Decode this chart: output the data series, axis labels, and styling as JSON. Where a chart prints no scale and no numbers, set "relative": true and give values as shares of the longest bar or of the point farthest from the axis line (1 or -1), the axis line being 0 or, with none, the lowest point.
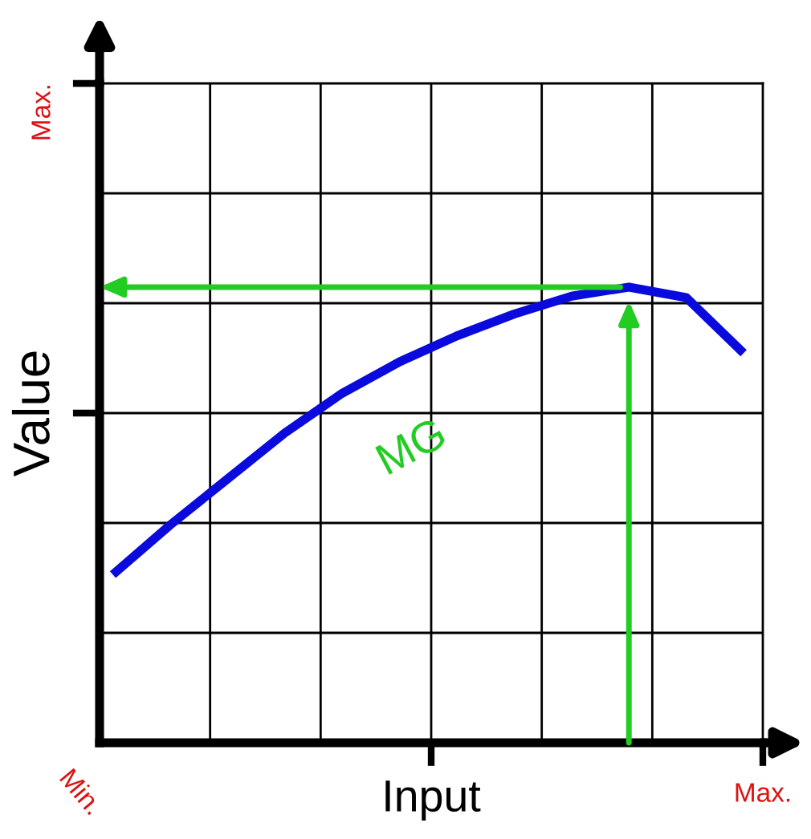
{
  "chart_data": {
    "type": "line",
    "xlabel": "Input",
    "ylabel": "Value",
    "relative": true,
    "grid": true,
    "categories": [
      null,
      null,
      null,
      null,
      null,
      null,
      null,
      null,
      null,
      null,
      null,
      null
    ],
    "series": [
      {
        "color": "#0a0adc",
        "values": [
          0.369,
          0.478,
          0.579,
          0.68,
          0.767,
          0.836,
          0.893,
          0.941,
          0.98,
          1.0,
          0.977,
          0.855
        ]
      }
    ],
    "annotations": [
      "MG",
      "Min.",
      "Max.",
      "Max."
    ]
  }
}
